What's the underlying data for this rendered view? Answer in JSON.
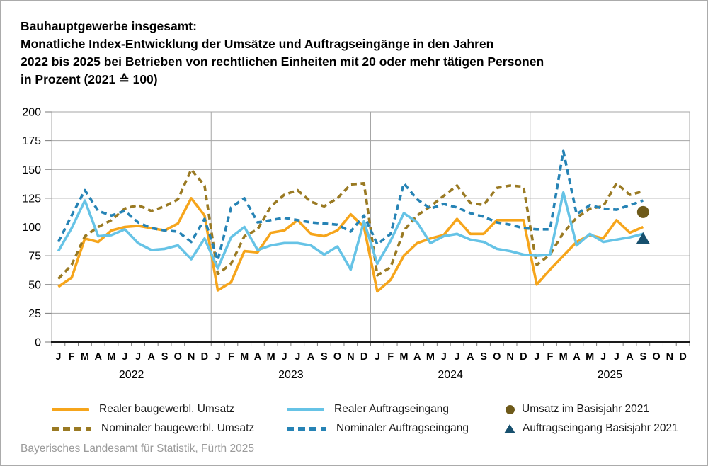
{
  "title": {
    "lines": [
      "Bauhauptgewerbe insgesamt:",
      "Monatliche Index-Entwicklung der Umsätze und Auftragseingänge in den Jahren",
      "2022 bis 2025 bei Betrieben von rechtlichen Einheiten mit 20 oder mehr tätigen Personen",
      "in Prozent (2021 ≙ 100)"
    ]
  },
  "footer": {
    "text": "Bayerisches Landesamt für Statistik, Fürth 2025"
  },
  "colors": {
    "grid": "#a6a6a6",
    "axis": "#1a1a1a",
    "tick": "#7a7a7a",
    "real_umsatz": "#F6A51B",
    "nominal_umsatz": "#9A7A23",
    "real_auftrag": "#66C3E6",
    "nominal_auftrag": "#2683B5",
    "basis_umsatz": "#6E5A1A",
    "basis_auftrag": "#17506E"
  },
  "chart_data": {
    "type": "line",
    "title": "Monatliche Index-Entwicklung der Umsätze und Auftragseingänge 2022-2025",
    "ylabel": "Index (2021 = 100)",
    "ylim": [
      0,
      200
    ],
    "yticks": [
      0,
      25,
      50,
      75,
      100,
      125,
      150,
      175,
      200
    ],
    "grid": true,
    "years": [
      "2022",
      "2023",
      "2024",
      "2025"
    ],
    "month_letters": [
      "J",
      "F",
      "M",
      "A",
      "M",
      "J",
      "J",
      "A",
      "S",
      "O",
      "N",
      "D"
    ],
    "months_per_year": 12,
    "total_slots": 48,
    "series": [
      {
        "name": "Realer baugewerbl. Umsatz",
        "style": "solid",
        "color": "#F6A51B",
        "values": [
          48,
          56,
          90,
          87,
          97,
          100,
          101,
          99,
          97,
          103,
          125,
          110,
          45,
          52,
          79,
          78,
          95,
          97,
          106,
          94,
          92,
          97,
          111,
          100,
          44,
          54,
          75,
          86,
          90,
          93,
          107,
          94,
          94,
          106,
          106,
          106,
          50,
          63,
          75,
          87,
          93,
          90,
          106,
          95,
          100
        ]
      },
      {
        "name": "Nominaler baugewerbl. Umsatz",
        "style": "dashed",
        "color": "#9A7A23",
        "values": [
          55,
          67,
          92,
          100,
          106,
          116,
          119,
          114,
          118,
          124,
          150,
          136,
          59,
          68,
          92,
          98,
          118,
          128,
          132,
          122,
          118,
          125,
          137,
          138,
          58,
          65,
          97,
          110,
          118,
          127,
          136,
          121,
          119,
          134,
          136,
          135,
          67,
          76,
          95,
          108,
          116,
          118,
          138,
          128,
          131
        ]
      },
      {
        "name": "Realer Auftragseingang",
        "style": "solid",
        "color": "#66C3E6",
        "values": [
          79,
          99,
          123,
          92,
          93,
          98,
          86,
          80,
          81,
          84,
          72,
          90,
          64,
          91,
          100,
          80,
          84,
          86,
          86,
          84,
          76,
          83,
          63,
          105,
          68,
          88,
          112,
          104,
          86,
          92,
          94,
          89,
          87,
          81,
          79,
          76,
          75,
          76,
          130,
          84,
          94,
          87,
          89,
          91,
          94
        ]
      },
      {
        "name": "Nominaler Auftragseingang",
        "style": "dashed",
        "color": "#2683B5",
        "values": [
          87,
          110,
          132,
          114,
          110,
          114,
          104,
          99,
          97,
          96,
          87,
          107,
          71,
          117,
          125,
          104,
          106,
          108,
          106,
          104,
          103,
          102,
          96,
          110,
          85,
          94,
          138,
          124,
          116,
          120,
          117,
          112,
          109,
          104,
          102,
          99,
          98,
          98,
          166,
          111,
          119,
          116,
          115,
          119,
          123
        ]
      }
    ],
    "markers": [
      {
        "name": "Umsatz im Basisjahr 2021",
        "shape": "circle",
        "color": "#6E5A1A",
        "month_index": 44,
        "value": 113
      },
      {
        "name": "Auftragseingang Basisjahr 2021",
        "shape": "triangle",
        "color": "#17506E",
        "month_index": 44,
        "value": 90
      }
    ]
  }
}
